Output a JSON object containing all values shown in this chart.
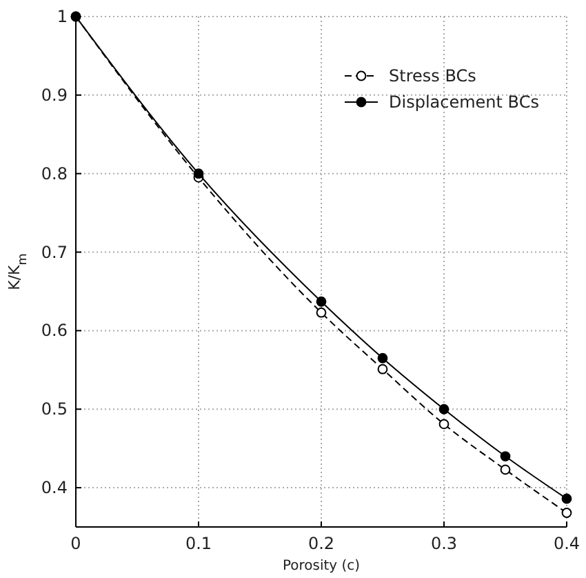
{
  "chart_data": {
    "type": "line",
    "xlabel": "Porosity (c)",
    "ylabel": "K/K$_{m}$",
    "xlim": [
      0,
      0.4
    ],
    "ylim": [
      0.35,
      1
    ],
    "xticks": [
      0,
      0.1,
      0.2,
      0.3,
      0.4
    ],
    "yticks": [
      0.4,
      0.5,
      0.6,
      0.7,
      0.8,
      0.9,
      1
    ],
    "grid": true,
    "legend": "top right",
    "x": [
      0,
      0.1,
      0.2,
      0.25,
      0.3,
      0.35,
      0.4
    ],
    "series": [
      {
        "name": "Stress BCs",
        "color": "#000000",
        "values": [
          1,
          0.795,
          0.623,
          0.551,
          0.481,
          0.423,
          0.368
        ],
        "line_style": "dashed",
        "marker": "circle"
      },
      {
        "name": "Displacement BCs",
        "color": "#000000",
        "values": [
          1,
          0.8,
          0.637,
          0.565,
          0.5,
          0.44,
          0.386
        ],
        "line_style": "solid",
        "marker": "circle"
      }
    ]
  }
}
